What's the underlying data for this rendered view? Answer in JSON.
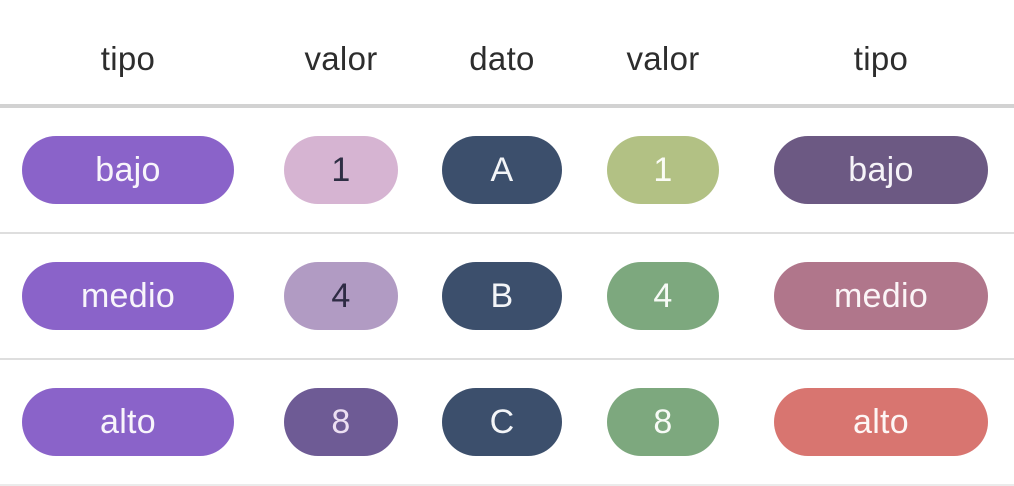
{
  "table": {
    "columns": [
      {
        "label": "tipo"
      },
      {
        "label": "valor"
      },
      {
        "label": "dato"
      },
      {
        "label": "valor"
      },
      {
        "label": "tipo"
      }
    ],
    "rows": [
      {
        "cells": [
          {
            "text": "bajo",
            "bg": "#8a63c9",
            "fg": "#f8f5fb"
          },
          {
            "text": "1",
            "bg": "#d6b4d2",
            "fg": "#2e2e44"
          },
          {
            "text": "A",
            "bg": "#3c4f6c",
            "fg": "#f3f5f8"
          },
          {
            "text": "1",
            "bg": "#b2c184",
            "fg": "#fbfcf6"
          },
          {
            "text": "bajo",
            "bg": "#6c5983",
            "fg": "#f6f3f8"
          }
        ]
      },
      {
        "cells": [
          {
            "text": "medio",
            "bg": "#8a63c9",
            "fg": "#f8f5fb"
          },
          {
            "text": "4",
            "bg": "#b19bc3",
            "fg": "#2e2b44"
          },
          {
            "text": "B",
            "bg": "#3c4f6c",
            "fg": "#f3f5f8"
          },
          {
            "text": "4",
            "bg": "#7da87e",
            "fg": "#f7faf6"
          },
          {
            "text": "medio",
            "bg": "#b0768b",
            "fg": "#fbf5f7"
          }
        ]
      },
      {
        "cells": [
          {
            "text": "alto",
            "bg": "#8a63c9",
            "fg": "#f8f5fb"
          },
          {
            "text": "8",
            "bg": "#6e5b95",
            "fg": "#ecdff2"
          },
          {
            "text": "C",
            "bg": "#3c4f6c",
            "fg": "#f3f5f8"
          },
          {
            "text": "8",
            "bg": "#7da87e",
            "fg": "#f7faf6"
          },
          {
            "text": "alto",
            "bg": "#d87570",
            "fg": "#fdf6f5"
          }
        ]
      }
    ]
  },
  "colors": {
    "background": "#ffffff",
    "header_text": "#2d2d2d",
    "header_divider": "#d2d2d2",
    "row_divider": "#dedede",
    "pill_purple": "#8a63c9",
    "pill_pink": "#d6b4d2",
    "pill_light_purple": "#b19bc3",
    "pill_dark_purple": "#6e5b95",
    "pill_navy": "#3c4f6c",
    "pill_olive_green": "#b2c184",
    "pill_green": "#7da87e",
    "pill_muted_purple": "#6c5983",
    "pill_dusty_rose": "#b0768b",
    "pill_salmon": "#d87570"
  },
  "chart_data": {
    "type": "table",
    "columns": [
      "tipo",
      "valor",
      "dato",
      "valor",
      "tipo"
    ],
    "rows": [
      [
        "bajo",
        1,
        "A",
        1,
        "bajo"
      ],
      [
        "medio",
        4,
        "B",
        4,
        "medio"
      ],
      [
        "alto",
        8,
        "C",
        8,
        "alto"
      ]
    ],
    "notes": "Pill-styled table; left tipo column uniform purple, left valor pills shade purple by value, dato pills navy, right valor pills shade green by value, right tipo pills colored per category"
  }
}
